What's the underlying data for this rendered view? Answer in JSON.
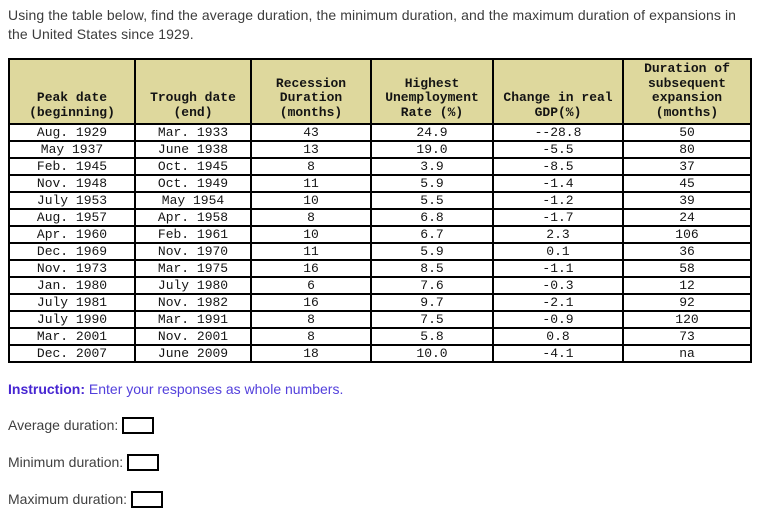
{
  "question": "Using the table below, find the average duration, the minimum duration, and the maximum duration of expansions in the United States since 1929.",
  "table": {
    "headers": [
      {
        "lines": [
          "Peak date",
          "(beginning)"
        ]
      },
      {
        "lines": [
          "Trough date",
          "(end)"
        ]
      },
      {
        "lines": [
          "Recession",
          "Duration",
          "(months)"
        ]
      },
      {
        "lines": [
          "Highest",
          "Unemployment",
          "Rate (%)"
        ]
      },
      {
        "lines": [
          "Change in real",
          "GDP(%)"
        ]
      },
      {
        "lines": [
          "Duration of",
          "subsequent",
          "expansion",
          "(months)"
        ]
      }
    ],
    "rows": [
      [
        "Aug. 1929",
        "Mar. 1933",
        "43",
        "24.9",
        "--28.8",
        "50"
      ],
      [
        "May 1937",
        "June 1938",
        "13",
        "19.0",
        "-5.5",
        "80"
      ],
      [
        "Feb. 1945",
        "Oct. 1945",
        "8",
        "3.9",
        "-8.5",
        "37"
      ],
      [
        "Nov. 1948",
        "Oct. 1949",
        "11",
        "5.9",
        "-1.4",
        "45"
      ],
      [
        "July 1953",
        "May 1954",
        "10",
        "5.5",
        "-1.2",
        "39"
      ],
      [
        "Aug. 1957",
        "Apr. 1958",
        "8",
        "6.8",
        "-1.7",
        "24"
      ],
      [
        "Apr. 1960",
        "Feb. 1961",
        "10",
        "6.7",
        "2.3",
        "106"
      ],
      [
        "Dec. 1969",
        "Nov. 1970",
        "11",
        "5.9",
        "0.1",
        "36"
      ],
      [
        "Nov. 1973",
        "Mar. 1975",
        "16",
        "8.5",
        "-1.1",
        "58"
      ],
      [
        "Jan. 1980",
        "July 1980",
        "6",
        "7.6",
        "-0.3",
        "12"
      ],
      [
        "July 1981",
        "Nov. 1982",
        "16",
        "9.7",
        "-2.1",
        "92"
      ],
      [
        "July 1990",
        "Mar. 1991",
        "8",
        "7.5",
        "-0.9",
        "120"
      ],
      [
        "Mar. 2001",
        "Nov. 2001",
        "8",
        "5.8",
        "0.8",
        "73"
      ],
      [
        "Dec. 2007",
        "June 2009",
        "18",
        "10.0",
        "-4.1",
        "na"
      ]
    ]
  },
  "instruction": {
    "label": "Instruction:",
    "text": " Enter your responses as whole numbers."
  },
  "answers": [
    {
      "label": "Average duration:",
      "value": ""
    },
    {
      "label": "Minimum duration:",
      "value": ""
    },
    {
      "label": "Maximum duration:",
      "value": ""
    }
  ],
  "colors": {
    "header_bg": "#ded89d",
    "instruction_label": "#4625d2",
    "instruction_text": "#5340dc",
    "border": "#000000"
  }
}
